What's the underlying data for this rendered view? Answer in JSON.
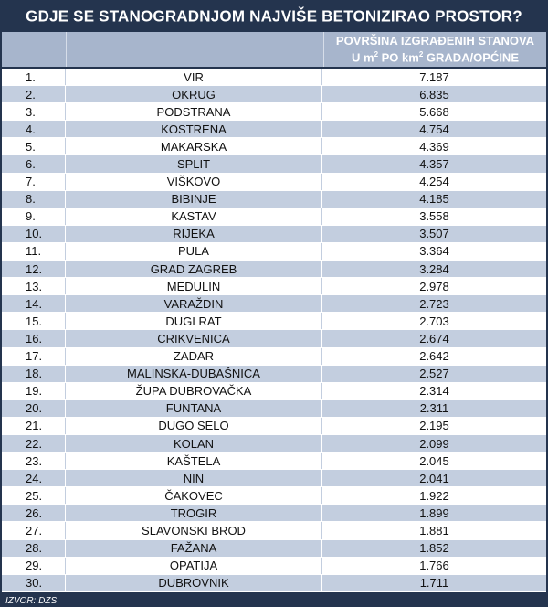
{
  "title": "GDJE SE STANOGRADNJOM NAJVIŠE BETONIZIRAO PROSTOR?",
  "header": {
    "value_line1": "POVRŠINA IZGRAĐENIH STANOVA",
    "value_line2_pre": "U m",
    "value_line2_sup1": "2",
    "value_line2_mid": " PO km",
    "value_line2_sup2": "2",
    "value_line2_post": " GRADA/OPĆINE"
  },
  "source": "IZVOR: DZS",
  "colors": {
    "background": "#24344e",
    "header": "#a7b5cc",
    "row_shaded": "#c3cedf",
    "row_plain": "#ffffff"
  },
  "chart_data": {
    "type": "table",
    "title": "GDJE SE STANOGRADNJOM NAJVIŠE BETONIZIRAO PROSTOR?",
    "columns": [
      "",
      "",
      "POVRŠINA IZGRAĐENIH STANOVA U m² PO km² GRADA/OPĆINE"
    ],
    "rows": [
      {
        "rank": "1.",
        "name": "VIR",
        "value": "7.187"
      },
      {
        "rank": "2.",
        "name": "OKRUG",
        "value": "6.835"
      },
      {
        "rank": "3.",
        "name": "PODSTRANA",
        "value": "5.668"
      },
      {
        "rank": "4.",
        "name": "KOSTRENA",
        "value": "4.754"
      },
      {
        "rank": "5.",
        "name": "MAKARSKA",
        "value": "4.369"
      },
      {
        "rank": "6.",
        "name": "SPLIT",
        "value": "4.357"
      },
      {
        "rank": "7.",
        "name": "VIŠKOVO",
        "value": "4.254"
      },
      {
        "rank": "8.",
        "name": "BIBINJE",
        "value": "4.185"
      },
      {
        "rank": "9.",
        "name": "KASTAV",
        "value": "3.558"
      },
      {
        "rank": "10.",
        "name": "RIJEKA",
        "value": "3.507"
      },
      {
        "rank": "11.",
        "name": "PULA",
        "value": "3.364"
      },
      {
        "rank": "12.",
        "name": "GRAD ZAGREB",
        "value": "3.284"
      },
      {
        "rank": "13.",
        "name": "MEDULIN",
        "value": "2.978"
      },
      {
        "rank": "14.",
        "name": "VARAŽDIN",
        "value": "2.723"
      },
      {
        "rank": "15.",
        "name": "DUGI RAT",
        "value": "2.703"
      },
      {
        "rank": "16.",
        "name": "CRIKVENICA",
        "value": "2.674"
      },
      {
        "rank": "17.",
        "name": "ZADAR",
        "value": "2.642"
      },
      {
        "rank": "18.",
        "name": "MALINSKA-DUBAŠNICA",
        "value": "2.527"
      },
      {
        "rank": "19.",
        "name": "ŽUPA DUBROVAČKA",
        "value": "2.314"
      },
      {
        "rank": "20.",
        "name": "FUNTANA",
        "value": "2.311"
      },
      {
        "rank": "21.",
        "name": "DUGO SELO",
        "value": "2.195"
      },
      {
        "rank": "22.",
        "name": "KOLAN",
        "value": "2.099"
      },
      {
        "rank": "23.",
        "name": "KAŠTELA",
        "value": "2.045"
      },
      {
        "rank": "24.",
        "name": "NIN",
        "value": "2.041"
      },
      {
        "rank": "25.",
        "name": "ČAKOVEC",
        "value": "1.922"
      },
      {
        "rank": "26.",
        "name": "TROGIR",
        "value": "1.899"
      },
      {
        "rank": "27.",
        "name": "SLAVONSKI BROD",
        "value": "1.881"
      },
      {
        "rank": "28.",
        "name": "FAŽANA",
        "value": "1.852"
      },
      {
        "rank": "29.",
        "name": "OPATIJA",
        "value": "1.766"
      },
      {
        "rank": "30.",
        "name": "DUBROVNIK",
        "value": "1.711"
      }
    ]
  }
}
